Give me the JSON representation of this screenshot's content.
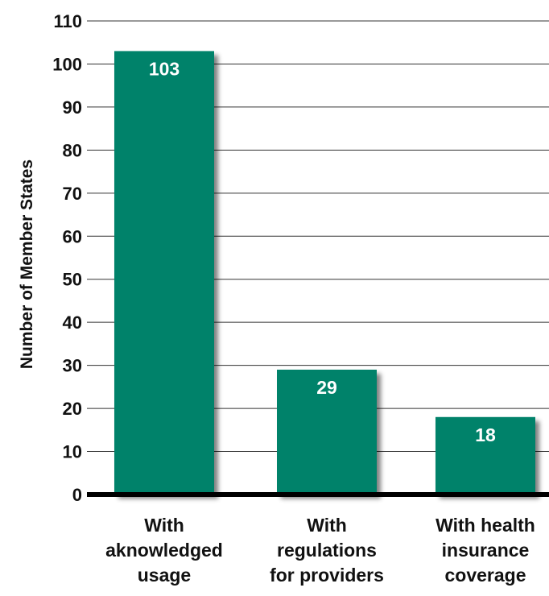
{
  "chart_data": {
    "type": "bar",
    "title": "",
    "xlabel": "",
    "ylabel": "Number of Member States",
    "categories": [
      [
        "With",
        "aknowledged",
        "usage"
      ],
      [
        "With",
        "regulations",
        "for providers"
      ],
      [
        "With health",
        "insurance",
        "coverage"
      ]
    ],
    "values": [
      103,
      29,
      18
    ],
    "value_labels": [
      "103",
      "29",
      "18"
    ],
    "ylim": [
      0,
      110
    ],
    "yticks": [
      0,
      10,
      20,
      30,
      40,
      50,
      60,
      70,
      80,
      90,
      100,
      110
    ],
    "grid": true,
    "legend": "none",
    "bar_color": "#00826b",
    "bar_shadow_color": "#8a8a8a"
  }
}
